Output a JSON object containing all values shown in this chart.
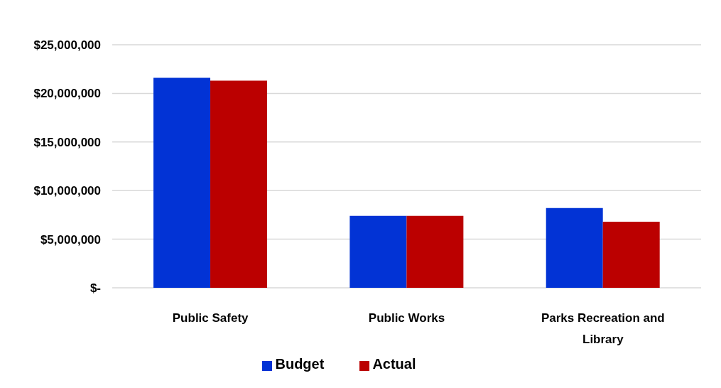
{
  "chart_data": {
    "type": "bar",
    "categories": [
      "Public Safety",
      "Public Works",
      "Parks Recreation and Library"
    ],
    "series": [
      {
        "name": "Budget",
        "color": "#0233d5",
        "values": [
          21600000,
          7400000,
          8200000
        ]
      },
      {
        "name": "Actual",
        "color": "#bb0000",
        "values": [
          21300000,
          7400000,
          6800000
        ]
      }
    ],
    "ylim": [
      0,
      25000000
    ],
    "yticks": [
      {
        "value": 0,
        "label": "$-"
      },
      {
        "value": 5000000,
        "label": "$5,000,000"
      },
      {
        "value": 10000000,
        "label": "$10,000,000"
      },
      {
        "value": 15000000,
        "label": "$15,000,000"
      },
      {
        "value": 20000000,
        "label": "$20,000,000"
      },
      {
        "value": 25000000,
        "label": "$25,000,000"
      }
    ],
    "grid": "y",
    "legend": "bottom"
  }
}
